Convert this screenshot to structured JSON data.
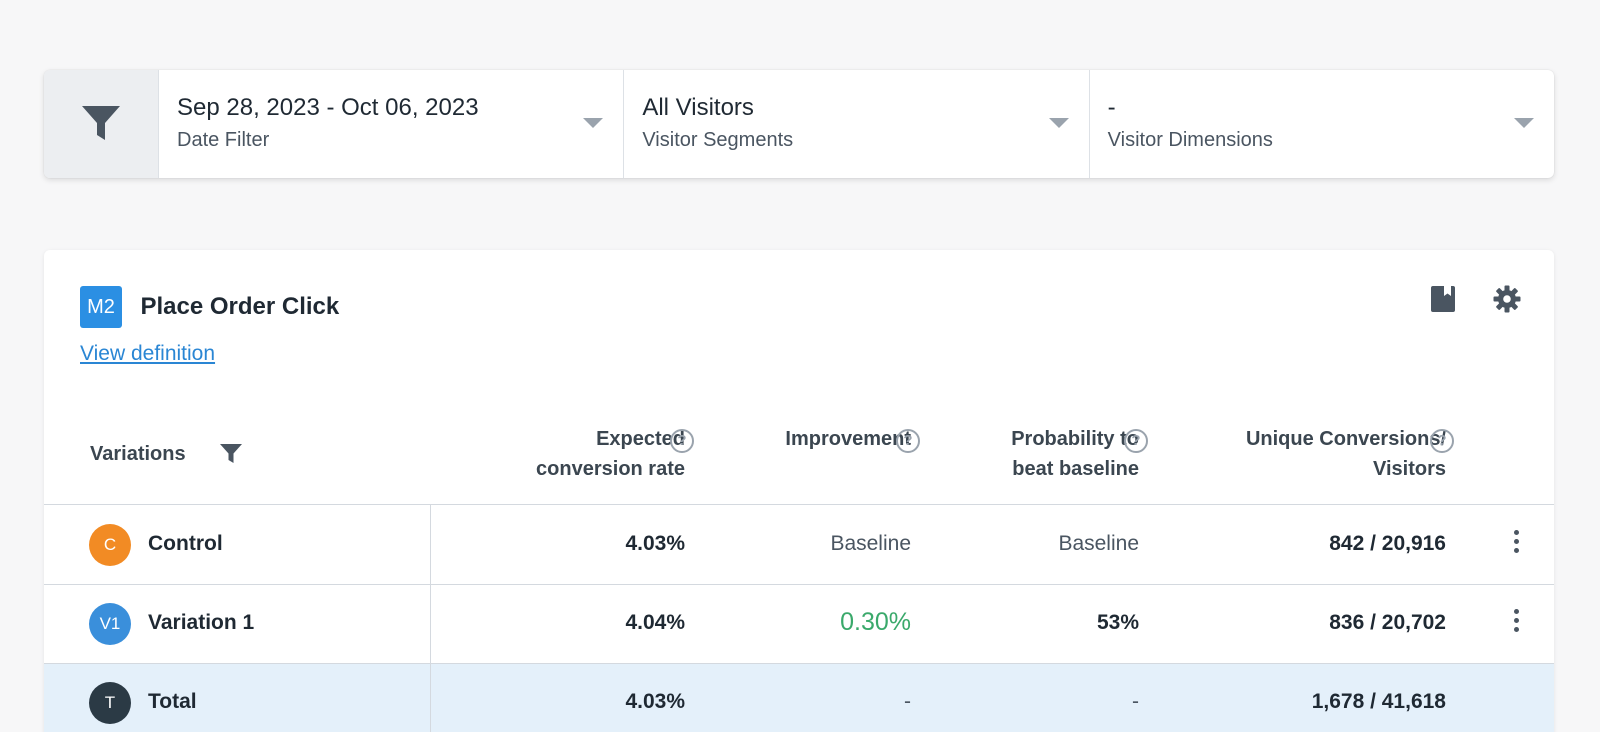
{
  "filters": {
    "date": {
      "value": "Sep 28, 2023 - Oct 06, 2023",
      "label": "Date Filter"
    },
    "segments": {
      "value": "All Visitors",
      "label": "Visitor Segments"
    },
    "dimensions": {
      "value": "-",
      "label": "Visitor Dimensions"
    }
  },
  "metric": {
    "badge": "M2",
    "title": "Place Order Click",
    "view_definition": "View definition"
  },
  "table": {
    "headers": {
      "variations": "Variations",
      "expected_line1": "Expected",
      "expected_line2": "conversion rate",
      "improvement": "Improvement",
      "probability_line1": "Probability to",
      "probability_line2": "beat baseline",
      "conversions_line1": "Unique Conversions/",
      "conversions_line2": "Visitors",
      "help": "?"
    },
    "rows": [
      {
        "avatar": "C",
        "avatar_color": "#f28b24",
        "name": "Control",
        "rate": "4.03%",
        "improvement": "Baseline",
        "probability": "Baseline",
        "conversions": "842 / 20,916"
      },
      {
        "avatar": "V1",
        "avatar_color": "#3a8fdb",
        "name": "Variation 1",
        "rate": "4.04%",
        "improvement": "0.30%",
        "probability": "53%",
        "conversions": "836 / 20,702"
      },
      {
        "avatar": "T",
        "avatar_color": "#2b3a45",
        "name": "Total",
        "rate": "4.03%",
        "improvement": "-",
        "probability": "-",
        "conversions": "1,678 / 41,618"
      }
    ]
  },
  "colors": {
    "accent": "#2b8fe3",
    "positive": "#3aa96b",
    "total_row_bg": "#e4f0fa"
  },
  "icons": [
    "filter-icon",
    "bookmark-icon",
    "gear-icon",
    "help-icon",
    "kebab-menu-icon"
  ]
}
